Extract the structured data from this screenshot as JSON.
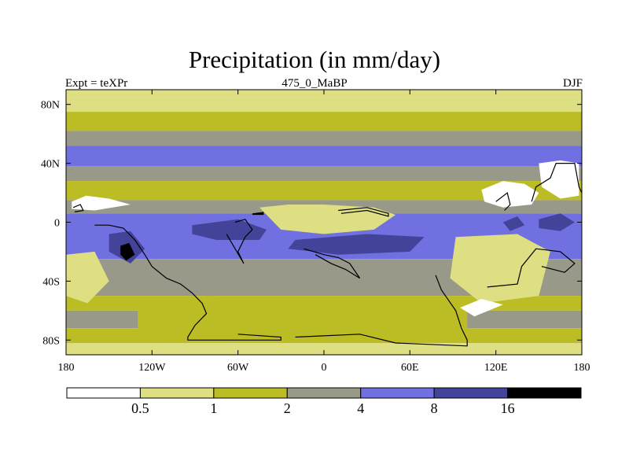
{
  "chart_data": {
    "type": "heatmap",
    "title": "Precipitation (in mm/day)",
    "subtitle_left": "Expt = teXPr",
    "subtitle_center": "475_0_MaBP",
    "subtitle_right": "DJF",
    "x_range": [
      -180,
      180
    ],
    "y_range": [
      -90,
      90
    ],
    "x_ticks": [
      {
        "value": -180,
        "label": "180"
      },
      {
        "value": -120,
        "label": "120W"
      },
      {
        "value": -60,
        "label": "60W"
      },
      {
        "value": 0,
        "label": "0"
      },
      {
        "value": 60,
        "label": "60E"
      },
      {
        "value": 120,
        "label": "120E"
      },
      {
        "value": 180,
        "label": "180"
      }
    ],
    "y_ticks": [
      {
        "value": 80,
        "label": "80N"
      },
      {
        "value": 40,
        "label": "40N"
      },
      {
        "value": 0,
        "label": "0"
      },
      {
        "value": -40,
        "label": "40S"
      },
      {
        "value": -80,
        "label": "80S"
      }
    ],
    "levels": [
      0.5,
      1,
      2,
      4,
      8,
      16
    ],
    "colorbar_labels": [
      "0.5",
      "1",
      "2",
      "4",
      "8",
      "16"
    ],
    "colors": [
      "#ffffff",
      "#dede82",
      "#bcbc25",
      "#99998a",
      "#7070e0",
      "#434399",
      "#000000"
    ],
    "zonal_bands": [
      {
        "lat_top": 90,
        "lat_bottom": 85,
        "class": 1
      },
      {
        "lat_top": 85,
        "lat_bottom": 75,
        "class": 1
      },
      {
        "lat_top": 75,
        "lat_bottom": 62,
        "class": 2
      },
      {
        "lat_top": 62,
        "lat_bottom": 52,
        "class": 3
      },
      {
        "lat_top": 52,
        "lat_bottom": 38,
        "class": 4
      },
      {
        "lat_top": 38,
        "lat_bottom": 28,
        "class": 3
      },
      {
        "lat_top": 28,
        "lat_bottom": 15,
        "class": 2
      },
      {
        "lat_top": 15,
        "lat_bottom": 6,
        "class": 3
      },
      {
        "lat_top": 6,
        "lat_bottom": -25,
        "class": 4
      },
      {
        "lat_top": -25,
        "lat_bottom": -50,
        "class": 3
      },
      {
        "lat_top": -50,
        "lat_bottom": -60,
        "class": 2
      },
      {
        "lat_top": -60,
        "lat_bottom": -72,
        "class": 3
      },
      {
        "lat_top": -72,
        "lat_bottom": -82,
        "class": 2
      },
      {
        "lat_top": -82,
        "lat_bottom": -90,
        "class": 1
      }
    ],
    "features": [
      {
        "class": 0,
        "points": [
          [
            -176,
            14
          ],
          [
            -166,
            18
          ],
          [
            -150,
            16
          ],
          [
            -135,
            12
          ],
          [
            -160,
            8
          ],
          [
            -176,
            9
          ]
        ]
      },
      {
        "class": 0,
        "points": [
          [
            150,
            40
          ],
          [
            165,
            42
          ],
          [
            178,
            40
          ],
          [
            178,
            18
          ],
          [
            165,
            16
          ],
          [
            152,
            24
          ]
        ]
      },
      {
        "class": 0,
        "points": [
          [
            110,
            22
          ],
          [
            125,
            28
          ],
          [
            140,
            26
          ],
          [
            150,
            20
          ],
          [
            145,
            12
          ],
          [
            125,
            10
          ],
          [
            112,
            14
          ]
        ]
      },
      {
        "class": 0,
        "points": [
          [
            -35,
            2
          ],
          [
            -20,
            5
          ],
          [
            0,
            6
          ],
          [
            30,
            5
          ],
          [
            45,
            2
          ],
          [
            30,
            -2
          ],
          [
            0,
            -3
          ],
          [
            -25,
            -1
          ]
        ]
      },
      {
        "class": 1,
        "points": [
          [
            -45,
            10
          ],
          [
            -25,
            12
          ],
          [
            0,
            12
          ],
          [
            35,
            10
          ],
          [
            50,
            5
          ],
          [
            35,
            -5
          ],
          [
            0,
            -8
          ],
          [
            -30,
            -5
          ]
        ]
      },
      {
        "class": 0,
        "points": [
          [
            100,
            -18
          ],
          [
            120,
            -14
          ],
          [
            140,
            -18
          ],
          [
            150,
            -32
          ],
          [
            138,
            -45
          ],
          [
            115,
            -45
          ],
          [
            100,
            -32
          ]
        ]
      },
      {
        "class": 1,
        "points": [
          [
            92,
            -10
          ],
          [
            135,
            -8
          ],
          [
            158,
            -20
          ],
          [
            150,
            -50
          ],
          [
            110,
            -55
          ],
          [
            88,
            -38
          ]
        ]
      },
      {
        "class": 0,
        "points": [
          [
            -178,
            -30
          ],
          [
            -170,
            -28
          ],
          [
            -165,
            -38
          ],
          [
            -172,
            -45
          ],
          [
            -178,
            -42
          ]
        ]
      },
      {
        "class": 1,
        "points": [
          [
            -180,
            -22
          ],
          [
            -160,
            -20
          ],
          [
            -150,
            -40
          ],
          [
            -165,
            -55
          ],
          [
            -180,
            -50
          ]
        ]
      },
      {
        "class": 2,
        "points": [
          [
            -130,
            -55
          ],
          [
            -80,
            -50
          ],
          [
            -40,
            -52
          ],
          [
            0,
            -58
          ],
          [
            60,
            -56
          ],
          [
            100,
            -60
          ],
          [
            100,
            -80
          ],
          [
            -130,
            -80
          ]
        ]
      },
      {
        "class": 0,
        "points": [
          [
            95,
            -58
          ],
          [
            110,
            -52
          ],
          [
            125,
            -56
          ],
          [
            105,
            -64
          ]
        ]
      },
      {
        "class": 5,
        "points": [
          [
            -92,
            -2
          ],
          [
            -60,
            2
          ],
          [
            -40,
            -5
          ],
          [
            -45,
            -12
          ],
          [
            -75,
            -12
          ],
          [
            -92,
            -8
          ]
        ]
      },
      {
        "class": 5,
        "points": [
          [
            -20,
            -12
          ],
          [
            30,
            -8
          ],
          [
            70,
            -10
          ],
          [
            60,
            -20
          ],
          [
            10,
            -22
          ],
          [
            -25,
            -18
          ]
        ]
      },
      {
        "class": 5,
        "points": [
          [
            -150,
            -8
          ],
          [
            -135,
            -6
          ],
          [
            -125,
            -18
          ],
          [
            -135,
            -28
          ],
          [
            -150,
            -20
          ]
        ]
      },
      {
        "class": 5,
        "points": [
          [
            125,
            0
          ],
          [
            135,
            4
          ],
          [
            140,
            -2
          ],
          [
            130,
            -6
          ]
        ]
      },
      {
        "class": 5,
        "points": [
          [
            150,
            2
          ],
          [
            165,
            6
          ],
          [
            175,
            0
          ],
          [
            165,
            -6
          ],
          [
            150,
            -4
          ]
        ]
      },
      {
        "class": 6,
        "points": [
          [
            -142,
            -16
          ],
          [
            -136,
            -14
          ],
          [
            -132,
            -22
          ],
          [
            -138,
            -26
          ],
          [
            -142,
            -22
          ]
        ]
      },
      {
        "class": 6,
        "points": [
          [
            -50,
            6
          ],
          [
            -42,
            7
          ],
          [
            -42,
            5
          ],
          [
            -50,
            5
          ]
        ]
      }
    ],
    "outlines": [
      [
        [
          -175,
          10
        ],
        [
          -170,
          12
        ],
        [
          -168,
          8
        ],
        [
          -174,
          7
        ]
      ],
      [
        [
          -160,
          -2
        ],
        [
          -150,
          -2
        ],
        [
          -140,
          -4
        ],
        [
          -132,
          -12
        ],
        [
          -125,
          -22
        ],
        [
          -120,
          -30
        ],
        [
          -110,
          -38
        ],
        [
          -100,
          -42
        ],
        [
          -92,
          -48
        ],
        [
          -85,
          -55
        ],
        [
          -82,
          -62
        ],
        [
          -90,
          -70
        ],
        [
          -95,
          -78
        ],
        [
          -95,
          -80
        ],
        [
          -30,
          -80
        ],
        [
          -30,
          -78
        ],
        [
          -60,
          -76
        ]
      ],
      [
        [
          -62,
          0
        ],
        [
          -55,
          2
        ],
        [
          -50,
          -5
        ],
        [
          -55,
          -10
        ],
        [
          -60,
          -20
        ],
        [
          -56,
          -28
        ],
        [
          -62,
          -18
        ],
        [
          -68,
          -8
        ]
      ],
      [
        [
          -14,
          -18
        ],
        [
          0,
          -22
        ],
        [
          10,
          -24
        ],
        [
          18,
          -28
        ],
        [
          25,
          -38
        ],
        [
          15,
          -32
        ],
        [
          5,
          -28
        ],
        [
          -6,
          -22
        ]
      ],
      [
        [
          -20,
          -78
        ],
        [
          25,
          -76
        ],
        [
          50,
          -82
        ],
        [
          100,
          -84
        ],
        [
          100,
          -80
        ]
      ],
      [
        [
          78,
          -36
        ],
        [
          82,
          -46
        ],
        [
          92,
          -60
        ],
        [
          96,
          -72
        ],
        [
          100,
          -80
        ]
      ],
      [
        [
          114,
          -44
        ],
        [
          135,
          -42
        ],
        [
          138,
          -30
        ],
        [
          148,
          -18
        ],
        [
          165,
          -20
        ],
        [
          175,
          -28
        ],
        [
          168,
          -34
        ],
        [
          152,
          -30
        ]
      ],
      [
        [
          120,
          14
        ],
        [
          128,
          20
        ],
        [
          130,
          12
        ],
        [
          126,
          8
        ]
      ],
      [
        [
          145,
          14
        ],
        [
          148,
          24
        ],
        [
          158,
          30
        ],
        [
          162,
          40
        ],
        [
          175,
          40
        ],
        [
          178,
          24
        ],
        [
          180,
          20
        ]
      ],
      [
        [
          10,
          8
        ],
        [
          30,
          10
        ],
        [
          45,
          6
        ],
        [
          45,
          4
        ],
        [
          30,
          8
        ],
        [
          12,
          6
        ]
      ]
    ]
  }
}
